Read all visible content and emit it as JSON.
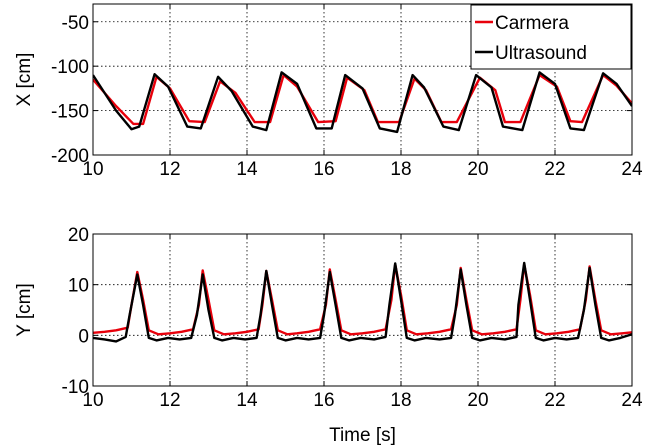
{
  "chart_data": [
    {
      "type": "line",
      "xlabel": "",
      "ylabel": "X [cm]",
      "xlim": [
        10,
        24
      ],
      "ylim": [
        -200,
        -30
      ],
      "xticks": [
        10,
        12,
        14,
        16,
        18,
        20,
        22,
        24
      ],
      "yticks": [
        -200,
        -150,
        -100,
        -50
      ],
      "grid": true,
      "legend": "top-right",
      "series": [
        {
          "name": "Carmera",
          "color": "#e8000b",
          "x": [
            10.0,
            10.6,
            11.05,
            11.3,
            11.65,
            12.0,
            12.5,
            12.9,
            13.3,
            13.7,
            14.2,
            14.6,
            14.95,
            15.3,
            15.85,
            16.3,
            16.6,
            17.05,
            17.4,
            17.95,
            18.35,
            18.65,
            19.05,
            19.45,
            20.05,
            20.45,
            20.7,
            21.1,
            21.6,
            22.05,
            22.4,
            22.7,
            23.25,
            23.6,
            24.0
          ],
          "y": [
            -115,
            -145,
            -165,
            -165,
            -112,
            -125,
            -162,
            -163,
            -117,
            -130,
            -163,
            -163,
            -110,
            -123,
            -163,
            -162,
            -113,
            -127,
            -163,
            -163,
            -114,
            -127,
            -163,
            -163,
            -113,
            -127,
            -163,
            -163,
            -110,
            -123,
            -162,
            -163,
            -110,
            -122,
            -142
          ]
        },
        {
          "name": "Ultrasound",
          "color": "#000000",
          "x": [
            10.0,
            10.6,
            11.0,
            11.2,
            11.6,
            11.95,
            12.45,
            12.8,
            13.25,
            13.6,
            14.15,
            14.5,
            14.9,
            15.3,
            15.8,
            16.2,
            16.55,
            17.0,
            17.45,
            17.9,
            18.3,
            18.6,
            19.1,
            19.5,
            19.95,
            20.35,
            20.65,
            21.15,
            21.6,
            22.0,
            22.4,
            22.75,
            23.25,
            23.6,
            24.0
          ],
          "y": [
            -110,
            -150,
            -171,
            -168,
            -109,
            -123,
            -168,
            -170,
            -112,
            -128,
            -168,
            -172,
            -107,
            -120,
            -170,
            -170,
            -110,
            -125,
            -170,
            -174,
            -110,
            -124,
            -168,
            -172,
            -110,
            -124,
            -168,
            -172,
            -107,
            -120,
            -170,
            -172,
            -108,
            -120,
            -145
          ]
        }
      ]
    },
    {
      "type": "line",
      "xlabel": "Time [s]",
      "ylabel": "Y [cm]",
      "xlim": [
        10,
        24
      ],
      "ylim": [
        -10,
        20
      ],
      "xticks": [
        10,
        12,
        14,
        16,
        18,
        20,
        22,
        24
      ],
      "yticks": [
        -10,
        0,
        10,
        20
      ],
      "grid": true,
      "series": [
        {
          "name": "Carmera",
          "color": "#e8000b",
          "x": [
            10.0,
            10.3,
            10.6,
            10.9,
            11.0,
            11.15,
            11.3,
            11.45,
            11.7,
            12.0,
            12.3,
            12.6,
            12.75,
            12.85,
            13.0,
            13.15,
            13.4,
            13.7,
            14.0,
            14.3,
            14.4,
            14.5,
            14.65,
            14.8,
            15.05,
            15.3,
            15.6,
            15.9,
            16.05,
            16.15,
            16.3,
            16.45,
            16.7,
            17.0,
            17.3,
            17.6,
            17.75,
            17.85,
            18.0,
            18.15,
            18.4,
            18.7,
            19.0,
            19.3,
            19.45,
            19.55,
            19.7,
            19.85,
            20.1,
            20.4,
            20.7,
            21.0,
            21.1,
            21.2,
            21.35,
            21.5,
            21.75,
            22.05,
            22.35,
            22.65,
            22.8,
            22.9,
            23.05,
            23.2,
            23.45,
            23.75,
            24.0
          ],
          "y": [
            0.5,
            0.7,
            1.0,
            1.5,
            6.0,
            12.5,
            7.0,
            1.0,
            0.2,
            0.4,
            0.7,
            1.2,
            6.0,
            12.8,
            7.0,
            1.0,
            0.2,
            0.4,
            0.7,
            1.2,
            6.0,
            12.7,
            7.0,
            1.0,
            0.2,
            0.4,
            0.7,
            1.2,
            6.0,
            13.0,
            7.0,
            1.0,
            0.2,
            0.4,
            0.7,
            1.2,
            7.0,
            14.0,
            8.0,
            1.0,
            0.2,
            0.4,
            0.7,
            1.2,
            6.0,
            13.3,
            7.0,
            1.0,
            0.2,
            0.4,
            0.7,
            1.2,
            7.0,
            14.0,
            8.0,
            1.0,
            0.2,
            0.4,
            0.7,
            1.2,
            7.0,
            13.6,
            7.0,
            1.0,
            0.2,
            0.4,
            0.6
          ]
        },
        {
          "name": "Ultrasound",
          "color": "#000000",
          "x": [
            10.0,
            10.3,
            10.6,
            10.85,
            10.95,
            11.15,
            11.3,
            11.45,
            11.65,
            11.95,
            12.25,
            12.55,
            12.7,
            12.85,
            13.0,
            13.15,
            13.35,
            13.65,
            13.95,
            14.25,
            14.35,
            14.5,
            14.65,
            14.8,
            15.0,
            15.3,
            15.6,
            15.9,
            16.0,
            16.15,
            16.3,
            16.45,
            16.65,
            16.95,
            17.3,
            17.6,
            17.7,
            17.85,
            18.0,
            18.15,
            18.35,
            18.65,
            19.0,
            19.3,
            19.4,
            19.55,
            19.7,
            19.85,
            20.05,
            20.35,
            20.7,
            21.0,
            21.05,
            21.2,
            21.35,
            21.5,
            21.7,
            22.0,
            22.3,
            22.6,
            22.75,
            22.9,
            23.05,
            23.2,
            23.4,
            23.7,
            24.0
          ],
          "y": [
            -0.5,
            -0.8,
            -1.2,
            -0.3,
            4.0,
            12.0,
            6.0,
            -0.5,
            -1.0,
            -0.5,
            -0.8,
            -0.5,
            4.0,
            12.0,
            5.0,
            -0.5,
            -1.0,
            -0.5,
            -0.8,
            -0.5,
            4.0,
            12.7,
            6.0,
            -0.5,
            -1.0,
            -0.5,
            -0.8,
            -0.5,
            4.0,
            12.5,
            6.0,
            -0.5,
            -1.0,
            -0.5,
            -0.8,
            -0.3,
            6.0,
            14.2,
            7.0,
            -0.5,
            -1.0,
            -0.5,
            -0.8,
            -0.5,
            4.0,
            13.0,
            6.0,
            -0.5,
            -1.0,
            -0.5,
            -0.8,
            -0.3,
            6.0,
            14.3,
            7.0,
            -0.5,
            -1.0,
            -0.5,
            -0.8,
            -0.5,
            5.0,
            13.3,
            6.0,
            -0.5,
            -1.0,
            -0.5,
            0.2
          ]
        }
      ]
    }
  ]
}
